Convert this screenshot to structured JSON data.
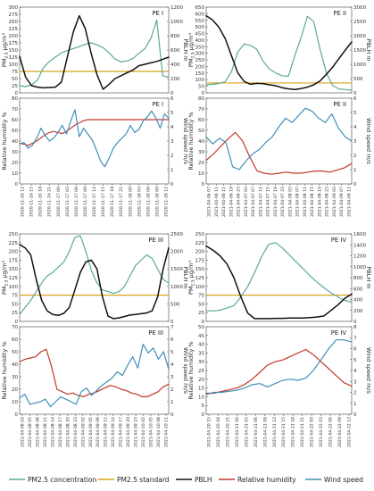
{
  "legend": [
    {
      "label": "PM2.5 concentration",
      "color": "#5aa99a",
      "kind": "line"
    },
    {
      "label": "PM2.5 standard",
      "color": "#d9a21b",
      "kind": "line"
    },
    {
      "label": "PBLH",
      "color": "#111111",
      "kind": "line"
    },
    {
      "label": "Relative humidity",
      "color": "#c0392b",
      "kind": "line"
    },
    {
      "label": "Wind speed",
      "color": "#3f8fb8",
      "kind": "line"
    }
  ],
  "colors": {
    "pm25": "#5aa99a",
    "standard": "#d9a21b",
    "pblh": "#111111",
    "rh": "#c0392b",
    "wind": "#3f8fb8"
  },
  "chart_data": [
    {
      "type": "line",
      "panel_label": "PE I",
      "position": "top-left",
      "ylabel_left": "PM2.5 μg/m³",
      "ylabel_right": "PBLH m",
      "yticks_left": [
        "0",
        "25",
        "50",
        "75",
        "100",
        "125",
        "150",
        "175",
        "200",
        "225",
        "250",
        "275",
        "300"
      ],
      "yticks_right": [
        "0",
        "200",
        "400",
        "600",
        "800",
        "1000",
        "1200"
      ],
      "ylim_left": [
        0,
        300
      ],
      "ylim_right": [
        0,
        1200
      ],
      "standard": 75,
      "series": [
        {
          "key": "pm25",
          "axis": "left",
          "values": [
            25,
            22,
            28,
            45,
            88,
            110,
            125,
            140,
            148,
            155,
            162,
            170,
            175,
            168,
            158,
            140,
            118,
            108,
            112,
            120,
            138,
            155,
            190,
            255,
            60,
            55
          ]
        },
        {
          "key": "pblh",
          "axis": "right",
          "values": [
            510,
            220,
            100,
            80,
            70,
            75,
            80,
            150,
            500,
            850,
            1080,
            900,
            550,
            250,
            50,
            120,
            200,
            240,
            280,
            320,
            380,
            400,
            420,
            440,
            470,
            500
          ]
        }
      ]
    },
    {
      "type": "line",
      "panel_label": "PE I",
      "position": "bottom-left",
      "ylabel_left": "Relative humidity %",
      "ylabel_right": "Wind speed m/s",
      "yticks_left": [
        "0",
        "10",
        "20",
        "30",
        "40",
        "50",
        "60",
        "70",
        "80"
      ],
      "yticks_right": [
        "0",
        "1",
        "2",
        "3",
        "4",
        "5",
        "6"
      ],
      "ylim_left": [
        0,
        80
      ],
      "ylim_right": [
        0,
        6
      ],
      "x_labels": [
        "2020-11-16 12",
        "2020-11-16 15",
        "2020-11-16 18",
        "2020-11-16 21",
        "2020-11-17 00",
        "2020-11-17 03",
        "2020-11-17 06",
        "2020-11-17 09",
        "2020-11-17 12",
        "2020-11-17 15",
        "2020-11-17 18",
        "2020-11-17 21",
        "2020-11-18 00",
        "2020-11-18 03",
        "2020-11-18 06",
        "2020-11-18 09",
        "2020-11-18 12"
      ],
      "series": [
        {
          "key": "rh",
          "axis": "left",
          "values": [
            38,
            37,
            36,
            38,
            40,
            43,
            46,
            48,
            49,
            48,
            47,
            49,
            52,
            55,
            57,
            59,
            60,
            60,
            60,
            60,
            60,
            60,
            60,
            60,
            60,
            60,
            60,
            60,
            60,
            60,
            60,
            60,
            60,
            60,
            60,
            60
          ]
        },
        {
          "key": "wind",
          "axis": "right",
          "values": [
            2.8,
            2.9,
            2.5,
            2.7,
            3.2,
            3.9,
            3.4,
            3.0,
            3.2,
            3.6,
            4.1,
            3.5,
            4.4,
            5.2,
            3.3,
            3.9,
            3.5,
            3.1,
            2.4,
            1.6,
            1.2,
            1.8,
            2.5,
            2.9,
            3.2,
            3.5,
            4.1,
            3.6,
            3.8,
            4.4,
            4.7,
            5.1,
            4.6,
            3.9,
            4.9,
            4.6
          ]
        }
      ]
    },
    {
      "type": "line",
      "panel_label": "PE II",
      "position": "top-right",
      "ylabel_left": "PM2.5 μg/m³",
      "ylabel_right": "PBLH m",
      "yticks_left": [
        "0",
        "50",
        "100",
        "150",
        "200",
        "250",
        "300",
        "350",
        "400",
        "450",
        "500",
        "550",
        "600",
        "650"
      ],
      "yticks_right": [
        "0",
        "500",
        "1000",
        "1500",
        "2000",
        "2500",
        "3000"
      ],
      "ylim_left": [
        0,
        650
      ],
      "ylim_right": [
        0,
        3000
      ],
      "standard": 75,
      "series": [
        {
          "key": "pm25",
          "axis": "left",
          "values": [
            60,
            65,
            70,
            85,
            160,
            310,
            370,
            360,
            330,
            240,
            180,
            150,
            130,
            125,
            280,
            420,
            580,
            540,
            330,
            150,
            55,
            30,
            25,
            20
          ]
        },
        {
          "key": "pblh",
          "axis": "right",
          "values": [
            2700,
            2550,
            2300,
            1900,
            1300,
            700,
            400,
            300,
            330,
            320,
            280,
            250,
            180,
            140,
            120,
            150,
            200,
            280,
            420,
            650,
            900,
            1200,
            1500,
            1780
          ]
        }
      ]
    },
    {
      "type": "line",
      "panel_label": "PE II",
      "position": "bottom-right",
      "ylabel_left": "Relative humidity %",
      "ylabel_right": "Wind speed m/s",
      "yticks_left": [
        "0",
        "10",
        "20",
        "30",
        "40",
        "50",
        "60",
        "70",
        "80"
      ],
      "yticks_right": [
        "0",
        "1",
        "2",
        "3",
        "4",
        "5",
        "6"
      ],
      "ylim_left": [
        0,
        80
      ],
      "ylim_right": [
        0,
        6
      ],
      "x_labels": [
        "2021-04-06 07",
        "2021-04-06 11",
        "2021-04-06 15",
        "2021-04-06 19",
        "2021-04-06 23",
        "2021-04-07 03",
        "2021-04-07 07",
        "2021-04-07 11",
        "2021-04-07 15",
        "2021-04-07 19",
        "2021-04-07 23",
        "2021-04-08 03",
        "2021-04-08 07",
        "2021-04-08 11",
        "2021-04-08 15",
        "2021-04-08 19",
        "2021-04-08 23",
        "2021-04-09 03",
        "2021-04-09 07",
        "2021-04-09 11"
      ],
      "series": [
        {
          "key": "rh",
          "axis": "left",
          "values": [
            22,
            28,
            35,
            42,
            48,
            40,
            25,
            12,
            10,
            9,
            10,
            11,
            10,
            10,
            11,
            12,
            12,
            11,
            13,
            15,
            19
          ]
        },
        {
          "key": "wind",
          "axis": "right",
          "values": [
            3.3,
            2.8,
            3.2,
            2.9,
            1.2,
            1.0,
            1.6,
            2.1,
            2.4,
            2.9,
            3.3,
            4.0,
            4.6,
            4.3,
            4.8,
            5.3,
            5.1,
            4.6,
            4.3,
            4.9,
            3.9,
            3.3,
            3.0
          ]
        }
      ]
    },
    {
      "type": "line",
      "panel_label": "PE III",
      "position": "top-left",
      "ylabel_left": "PM2.5 μg/m³",
      "ylabel_right": "PBLH m",
      "yticks_left": [
        "0",
        "25",
        "50",
        "75",
        "100",
        "125",
        "150",
        "175",
        "200",
        "225",
        "250"
      ],
      "yticks_right": [
        "0",
        "500",
        "1000",
        "1500",
        "2000",
        "2500"
      ],
      "ylim_left": [
        0,
        250
      ],
      "ylim_right": [
        0,
        2500
      ],
      "standard": 75,
      "series": [
        {
          "key": "pm25",
          "axis": "left",
          "values": [
            20,
            40,
            60,
            85,
            110,
            130,
            140,
            155,
            170,
            200,
            240,
            245,
            200,
            145,
            110,
            90,
            85,
            80,
            85,
            100,
            130,
            160,
            175,
            190,
            180,
            150,
            120,
            110
          ]
        },
        {
          "key": "pblh",
          "axis": "right",
          "values": [
            2200,
            2100,
            1900,
            1200,
            600,
            300,
            200,
            170,
            230,
            400,
            900,
            1400,
            1700,
            1750,
            1500,
            700,
            150,
            80,
            100,
            140,
            180,
            200,
            220,
            240,
            300,
            700,
            1500,
            2100
          ]
        }
      ]
    },
    {
      "type": "line",
      "panel_label": "PE III",
      "position": "bottom-left",
      "ylabel_left": "Relative humidity %",
      "ylabel_right": "Wind speed m/s",
      "yticks_left": [
        "0",
        "10",
        "20",
        "30",
        "40",
        "50",
        "60",
        "70"
      ],
      "yticks_right": [
        "0",
        "1",
        "2",
        "3",
        "4",
        "5",
        "6",
        "7"
      ],
      "ylim_left": [
        0,
        70
      ],
      "ylim_right": [
        0,
        7
      ],
      "x_labels": [
        "2021-04-08 02",
        "2021-04-08 05",
        "2021-04-08 08",
        "2021-04-08 11",
        "2021-04-08 14",
        "2021-04-08 17",
        "2021-04-08 20",
        "2021-04-08 23",
        "2021-04-09 02",
        "2021-04-09 05",
        "2021-04-09 08",
        "2021-04-09 11",
        "2021-04-09 14",
        "2021-04-09 17",
        "2021-04-09 20",
        "2021-04-09 23",
        "2021-04-10 02",
        "2021-04-10 05",
        "2021-04-10 08",
        "2021-04-10 11"
      ],
      "series": [
        {
          "key": "rh",
          "axis": "left",
          "values": [
            42,
            44,
            45,
            46,
            50,
            52,
            38,
            20,
            18,
            16,
            17,
            15,
            14,
            16,
            17,
            19,
            21,
            23,
            22,
            20,
            19,
            17,
            16,
            14,
            14,
            16,
            18,
            22,
            24
          ]
        },
        {
          "key": "wind",
          "axis": "right",
          "values": [
            1.3,
            1.6,
            0.8,
            0.9,
            1.0,
            1.2,
            0.6,
            1.0,
            1.4,
            1.2,
            1.0,
            0.8,
            1.8,
            2.1,
            1.5,
            1.9,
            2.3,
            2.6,
            2.9,
            3.4,
            3.1,
            3.9,
            4.6,
            3.7,
            5.6,
            4.9,
            5.3,
            4.4,
            5.0,
            3.6
          ]
        }
      ]
    },
    {
      "type": "line",
      "panel_label": "PE IV",
      "position": "top-right",
      "ylabel_left": "PM2.5 μg/m³",
      "ylabel_right": "PBLH m",
      "yticks_left": [
        "0",
        "25",
        "50",
        "75",
        "100",
        "125",
        "150",
        "175",
        "200",
        "225",
        "250"
      ],
      "yticks_right": [
        "0",
        "200",
        "400",
        "600",
        "800",
        "1000",
        "1200",
        "1400",
        "1600"
      ],
      "ylim_left": [
        0,
        250
      ],
      "ylim_right": [
        0,
        1600
      ],
      "standard": 75,
      "series": [
        {
          "key": "pm25",
          "axis": "left",
          "values": [
            30,
            30,
            32,
            38,
            45,
            70,
            100,
            140,
            185,
            220,
            225,
            210,
            190,
            170,
            150,
            130,
            112,
            96,
            82,
            70,
            60,
            55
          ]
        },
        {
          "key": "pblh",
          "axis": "right",
          "values": [
            1380,
            1300,
            1200,
            1050,
            800,
            450,
            150,
            50,
            50,
            50,
            55,
            55,
            60,
            60,
            60,
            70,
            80,
            100,
            200,
            300,
            420,
            500
          ]
        }
      ]
    },
    {
      "type": "line",
      "panel_label": "PE IV",
      "position": "bottom-right",
      "ylabel_left": "Relative humidity %",
      "ylabel_right": "Wind speed m/s",
      "yticks_left": [
        "0",
        "5",
        "10",
        "15",
        "20",
        "25",
        "30",
        "35",
        "40",
        "45",
        "50"
      ],
      "yticks_right": [
        "0",
        "1",
        "2",
        "3",
        "4",
        "5",
        "6",
        "7",
        "8"
      ],
      "ylim_left": [
        0,
        50
      ],
      "ylim_right": [
        0,
        8
      ],
      "x_labels": [
        "2021-04-20 15",
        "2021-04-20 18",
        "2021-04-20 21",
        "2021-04-21 00",
        "2021-04-21 03",
        "2021-04-21 06",
        "2021-04-21 09",
        "2021-04-21 12",
        "2021-04-21 15",
        "2021-04-21 18",
        "2021-04-21 21",
        "2021-04-22 00",
        "2021-04-22 03",
        "2021-04-22 06",
        "2021-04-22 09",
        "2021-04-22 12"
      ],
      "series": [
        {
          "key": "rh",
          "axis": "left",
          "values": [
            12,
            12,
            13,
            14,
            15,
            17,
            20,
            24,
            28,
            30,
            31,
            33,
            35,
            37,
            34,
            30,
            26,
            22,
            18,
            16
          ]
        },
        {
          "key": "wind",
          "axis": "right",
          "values": [
            1.8,
            2.0,
            2.0,
            2.1,
            2.2,
            2.4,
            2.7,
            2.8,
            2.5,
            2.8,
            3.1,
            3.2,
            3.1,
            3.3,
            4.0,
            5.0,
            6.0,
            6.8,
            6.8,
            6.6
          ]
        }
      ]
    }
  ]
}
